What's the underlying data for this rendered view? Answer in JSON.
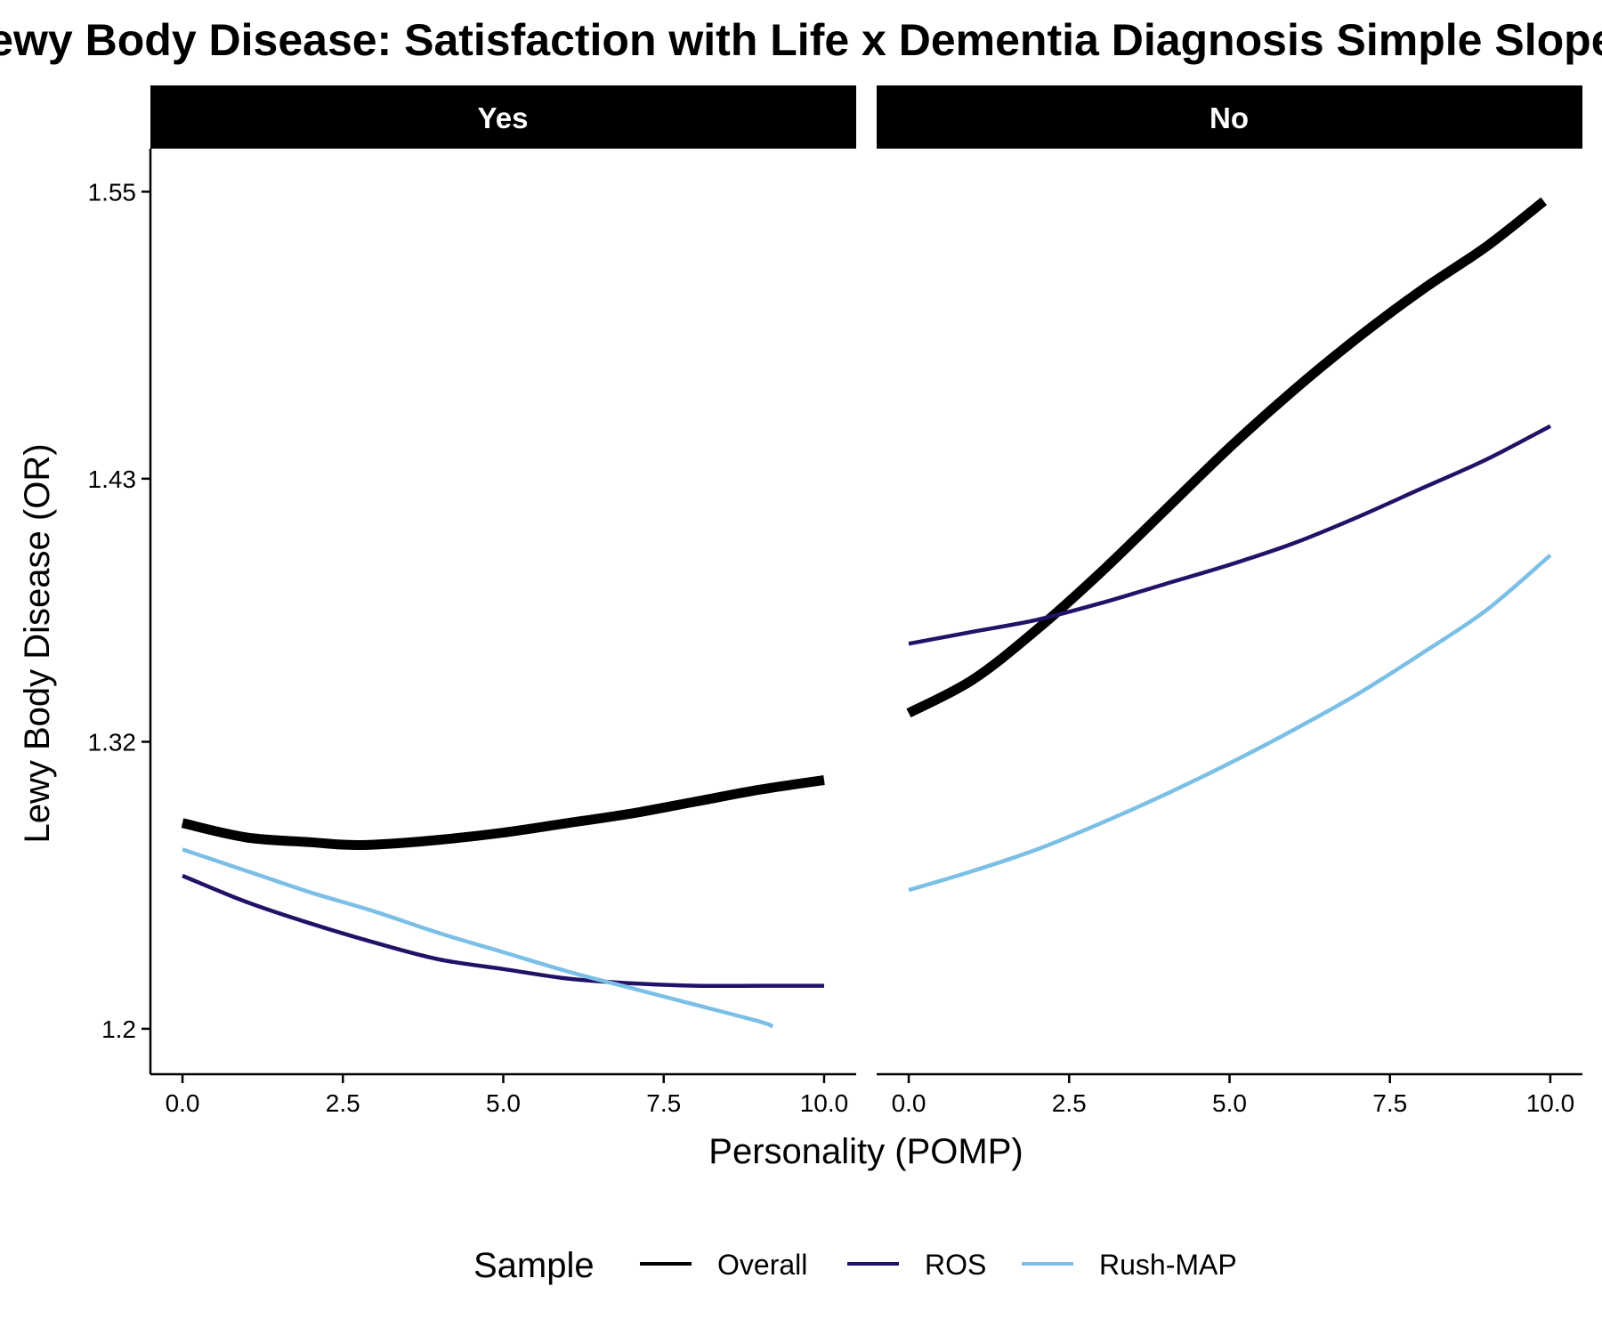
{
  "chart_data": {
    "type": "line",
    "title": "Lewy Body Disease: Satisfaction with Life x Dementia Diagnosis Simple Slopes",
    "xlabel": "Personality (POMP)",
    "ylabel": "Lewy Body Disease (OR)",
    "xlim": [
      -0.5,
      10.5
    ],
    "ylim": [
      1.181,
      1.568
    ],
    "x_ticks": [
      0,
      2.5,
      5,
      7.5,
      10
    ],
    "x_tick_labels": [
      "0.0",
      "2.5",
      "5.0",
      "7.5",
      "10.0"
    ],
    "y_ticks": [
      1.2,
      1.32,
      1.43,
      1.55
    ],
    "y_tick_labels": [
      "1.2",
      "1.32",
      "1.43",
      "1.55"
    ],
    "grid": false,
    "legend": {
      "title": "Sample",
      "position": "bottom",
      "entries": [
        "Overall",
        "ROS",
        "Rush-MAP"
      ]
    },
    "colors": {
      "Overall": "#000000",
      "ROS": "#231167",
      "Rush-MAP": "#7bbfe6"
    },
    "facets": [
      {
        "label": "Yes",
        "series": [
          {
            "name": "Overall",
            "x": [
              0,
              1,
              2,
              2.5,
              3,
              4,
              5,
              6,
              7,
              8,
              9,
              10
            ],
            "y": [
              1.286,
              1.28,
              1.278,
              1.277,
              1.277,
              1.279,
              1.282,
              1.286,
              1.29,
              1.295,
              1.3,
              1.304
            ]
          },
          {
            "name": "ROS",
            "x": [
              0,
              1,
              2,
              3,
              4,
              5,
              6,
              7,
              8,
              9,
              10
            ],
            "y": [
              1.264,
              1.253,
              1.244,
              1.236,
              1.229,
              1.225,
              1.221,
              1.219,
              1.218,
              1.218,
              1.218
            ]
          },
          {
            "name": "Rush-MAP",
            "x": [
              0,
              1,
              2,
              3,
              4,
              5,
              6,
              7,
              8,
              9,
              9.2
            ],
            "y": [
              1.275,
              1.266,
              1.257,
              1.249,
              1.24,
              1.232,
              1.224,
              1.217,
              1.21,
              1.203,
              1.201
            ]
          }
        ]
      },
      {
        "label": "No",
        "series": [
          {
            "name": "Overall",
            "x": [
              0,
              1,
              2,
              3,
              4,
              5,
              6,
              7,
              8,
              9,
              9.9
            ],
            "y": [
              1.332,
              1.346,
              1.367,
              1.391,
              1.417,
              1.443,
              1.467,
              1.489,
              1.509,
              1.527,
              1.546
            ]
          },
          {
            "name": "ROS",
            "x": [
              0,
              1,
              2,
              3,
              4,
              5,
              6,
              7,
              8,
              9,
              10
            ],
            "y": [
              1.361,
              1.366,
              1.371,
              1.378,
              1.386,
              1.394,
              1.403,
              1.414,
              1.426,
              1.438,
              1.452
            ]
          },
          {
            "name": "Rush-MAP",
            "x": [
              0,
              1,
              2,
              3,
              4,
              5,
              6,
              7,
              8,
              9,
              10
            ],
            "y": [
              1.258,
              1.266,
              1.275,
              1.286,
              1.298,
              1.311,
              1.325,
              1.34,
              1.357,
              1.375,
              1.398
            ]
          }
        ]
      }
    ]
  }
}
